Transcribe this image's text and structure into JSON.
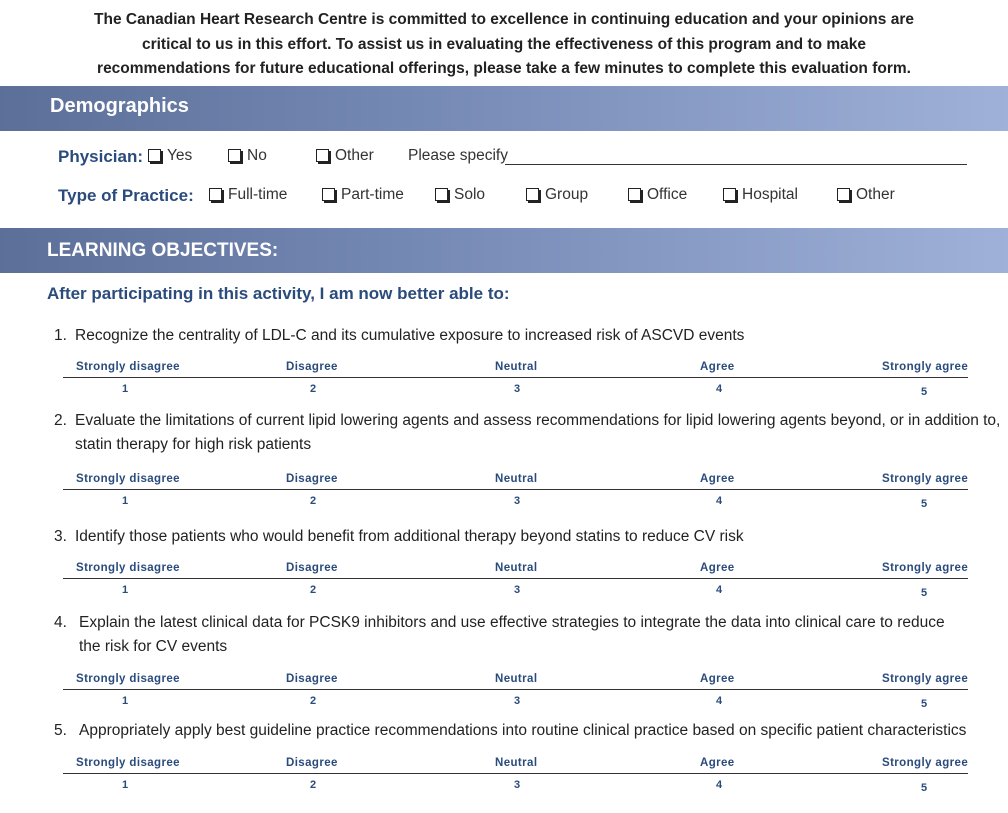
{
  "intro": {
    "lines": [
      "The Canadian Heart Research Centre is committed to excellence in continuing education and your opinions are",
      "critical to us in this effort. To assist us in evaluating the effectiveness of this program and to make",
      "recommendations for future educational offerings, please take a few minutes to complete this evaluation form."
    ]
  },
  "demographics": {
    "title": "Demographics",
    "physician": {
      "label": "Physician:",
      "options": [
        "Yes",
        "No",
        "Other"
      ],
      "specify_label": "Please specify"
    },
    "practice": {
      "label": "Type of Practice:",
      "options": [
        "Full-time",
        "Part-time",
        "Solo",
        "Group",
        "Office",
        "Hospital",
        "Other"
      ]
    }
  },
  "objectives": {
    "title": "LEARNING OBJECTIVES:",
    "subtitle": "After participating in this activity, I am now better able to:",
    "scale_labels": [
      "Strongly disagree",
      "Disagree",
      "Neutral",
      "Agree",
      "Strongly agree"
    ],
    "scale_numbers": [
      "1",
      "2",
      "3",
      "4",
      "5"
    ],
    "items": [
      {
        "num": "1.",
        "lines": [
          "Recognize the centrality of LDL-C and its cumulative exposure to  increased risk of ASCVD events"
        ]
      },
      {
        "num": "2.",
        "lines": [
          "Evaluate the limitations of current lipid lowering agents and assess recommendations for lipid lowering agents beyond, or in addition to,",
          "statin therapy for high risk patients"
        ]
      },
      {
        "num": "3.",
        "lines": [
          "Identify those patients who would benefit from additional therapy beyond statins to reduce CV risk"
        ]
      },
      {
        "num": "4.",
        "lines": [
          "Explain the latest clinical data for PCSK9 inhibitors and use effective strategies to integrate the data into clinical care to reduce",
          "the risk for CV events"
        ]
      },
      {
        "num": "5.",
        "lines": [
          "Appropriately apply best guideline practice recommendations into routine clinical practice based on specific patient characteristics"
        ]
      }
    ]
  }
}
